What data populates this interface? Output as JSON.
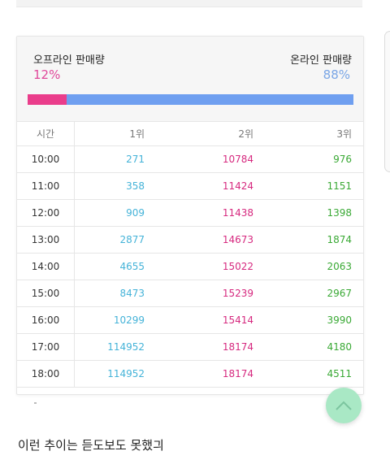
{
  "share": {
    "offline_label": "오프라인 판매량",
    "offline_pct": "12%",
    "offline_value": 0.12,
    "online_label": "온라인 판매량",
    "online_pct": "88%",
    "online_value": 0.88
  },
  "table": {
    "headers": [
      "시간",
      "1위",
      "2위",
      "3위"
    ],
    "rows": [
      [
        "10:00",
        "271",
        "10784",
        "976"
      ],
      [
        "11:00",
        "358",
        "11424",
        "1151"
      ],
      [
        "12:00",
        "909",
        "11438",
        "1398"
      ],
      [
        "13:00",
        "2877",
        "14673",
        "1874"
      ],
      [
        "14:00",
        "4655",
        "15022",
        "2063"
      ],
      [
        "15:00",
        "8473",
        "15239",
        "2967"
      ],
      [
        "16:00",
        "10299",
        "15414",
        "3990"
      ],
      [
        "17:00",
        "114952",
        "18174",
        "4180"
      ],
      [
        "18:00",
        "114952",
        "18174",
        "4511"
      ]
    ]
  },
  "colors": {
    "offline": "#ea3d8b",
    "online": "#6f9ff0",
    "rank1": "#45b3d8",
    "rank2": "#d6297f",
    "rank3": "#3aa935",
    "scroll_button": "#a9e8c5"
  },
  "icons": {
    "scroll_top": "chevron-up-icon"
  },
  "comment": "이런 추이는 듣도보도 못했긔"
}
